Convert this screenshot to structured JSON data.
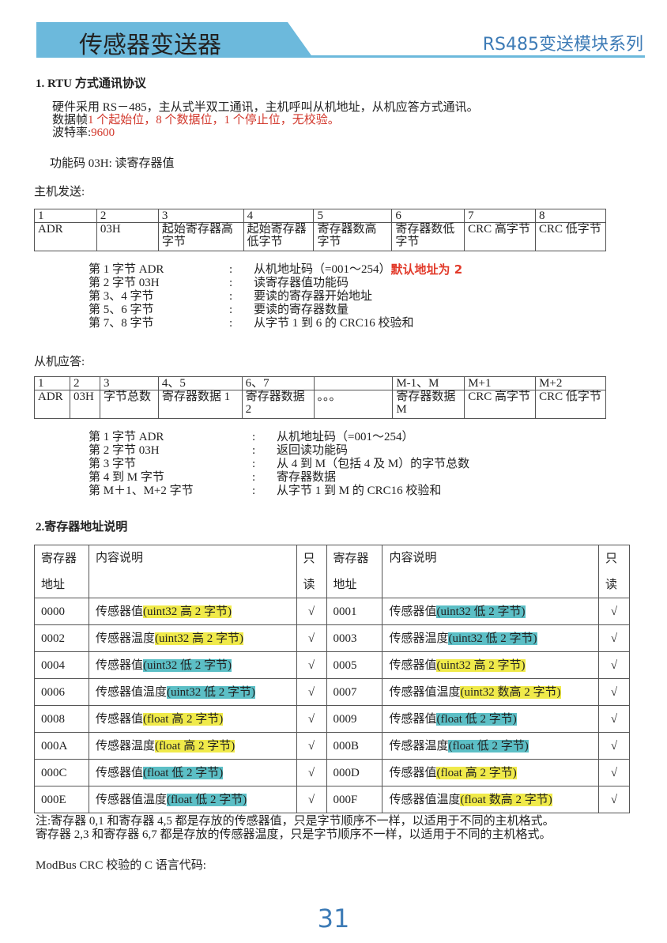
{
  "header": {
    "title": "传感器变送器",
    "series": "RS485变送模块系列",
    "accent": "#6cb9dc",
    "series_color": "#3d7bb6"
  },
  "section1": {
    "heading": "1. RTU 方式通讯协议",
    "line1": "硬件采用 RS－485，主从式半双工通讯，主机呼叫从机地址，从机应答方式通讯。",
    "line2_label": "数据帧",
    "line2_value": "1 个起始位，8 个数据位，1 个停止位，无校验。",
    "line3_label": "波特率:",
    "line3_value": "9600",
    "function_code": "功能码 03H:   读寄存器值",
    "master_label": "主机发送:",
    "master_table": {
      "numbers": [
        "1",
        "2",
        "3",
        "4",
        "5",
        "6",
        "7",
        "8"
      ],
      "cells": [
        "ADR",
        "03H",
        "起始寄存器高字节",
        "起始寄存器低字节",
        "寄存器数高字节",
        "寄存器数低字节",
        "CRC 高字节",
        "CRC 低字节"
      ]
    },
    "master_desc": [
      {
        "label": "第 1 字节   ADR",
        "colon": ":",
        "text": "从机地址码（=001～254）",
        "note": "默认地址为 2"
      },
      {
        "label": "第 2 字节 03H",
        "colon": ":",
        "text": "读寄存器值功能码"
      },
      {
        "label": "第 3、4 字节",
        "colon": ":",
        "text": "要读的寄存器开始地址"
      },
      {
        "label": "第 5、6 字节",
        "colon": ":",
        "text": "要读的寄存器数量"
      },
      {
        "label": "第 7、8 字节",
        "colon": ":",
        "text": "从字节 1 到 6 的 CRC16 校验和"
      }
    ],
    "slave_label": "从机应答:",
    "slave_table": {
      "numbers": [
        "1",
        "2",
        "3",
        "4、5",
        "6、7",
        "",
        "M-1、M",
        "M+1",
        "M+2"
      ],
      "cells": [
        "ADR",
        "03H",
        "字节总数",
        "寄存器数据 1",
        "寄存器数据 2",
        "。。。",
        "寄存器数据 M",
        "CRC 高字节",
        "CRC 低字节"
      ]
    },
    "slave_desc": [
      {
        "label": "第 1 字节   ADR",
        "colon": ":",
        "text": "从机地址码（=001～254）"
      },
      {
        "label": "第 2 字节   03H",
        "colon": ":",
        "text": "返回读功能码"
      },
      {
        "label": "第 3 字节",
        "colon": ":",
        "text": "从 4 到 M（包括 4 及 M）的字节总数"
      },
      {
        "label": "第 4 到 M 字节",
        "colon": ":",
        "text": "寄存器数据"
      },
      {
        "label": "第 M＋1、M+2 字节",
        "colon": ":",
        "text": "从字节 1 到 M 的 CRC16 校验和"
      }
    ]
  },
  "section2": {
    "heading": "2.寄存器地址说明",
    "headers": {
      "addr1": "寄存器",
      "addr2": "地址",
      "content": "内容说明",
      "ro1": "只",
      "ro2": "读"
    },
    "highlight_colors": {
      "yellow": "#f0ea4a",
      "teal": "#5cbfc6"
    },
    "rows": [
      {
        "l": {
          "addr": "0000",
          "name": "传感器值",
          "detail": "(uint32 高 2 字节)",
          "hl": "yellow",
          "ro": "√"
        },
        "r": {
          "addr": "0001",
          "name": "传感器值",
          "detail": "(uint32 低 2 字节)",
          "hl": "teal",
          "ro": "√"
        }
      },
      {
        "l": {
          "addr": "0002",
          "name": "传感器温度",
          "detail": "(uint32 高 2 字节)",
          "hl": "yellow",
          "ro": "√"
        },
        "r": {
          "addr": "0003",
          "name": "传感器温度",
          "detail": "(uint32 低 2 字节)",
          "hl": "teal",
          "ro": "√"
        }
      },
      {
        "l": {
          "addr": "0004",
          "name": "传感器值",
          "detail": "(uint32 低 2 字节)",
          "hl": "teal",
          "ro": "√"
        },
        "r": {
          "addr": "0005",
          "name": "传感器值",
          "detail": "(uint32 高 2 字节)",
          "hl": "yellow",
          "ro": "√"
        }
      },
      {
        "l": {
          "addr": "0006",
          "name": "传感器值温度",
          "detail": "(uint32 低 2 字节)",
          "hl": "teal",
          "ro": "√"
        },
        "r": {
          "addr": "0007",
          "name": "传感器值温度",
          "detail": "(uint32 数高 2 字节)",
          "hl": "yellow",
          "ro": "√"
        }
      },
      {
        "l": {
          "addr": "0008",
          "name": "传感器值",
          "detail": "(float 高 2 字节)",
          "hl": "yellow",
          "ro": "√"
        },
        "r": {
          "addr": "0009",
          "name": "传感器值",
          "detail": "(float 低 2 字节)",
          "hl": "teal",
          "ro": "√"
        }
      },
      {
        "l": {
          "addr": "000A",
          "name": "传感器温度",
          "detail": "(float 高 2 字节)",
          "hl": "yellow",
          "ro": "√"
        },
        "r": {
          "addr": "000B",
          "name": "传感器温度",
          "detail": "(float 低 2 字节)",
          "hl": "teal",
          "ro": "√"
        }
      },
      {
        "l": {
          "addr": "000C",
          "name": "传感器值",
          "detail": "(float 低 2 字节)",
          "hl": "teal",
          "ro": "√"
        },
        "r": {
          "addr": "000D",
          "name": "传感器值",
          "detail": "(float 高 2 字节)",
          "hl": "yellow",
          "ro": "√"
        }
      },
      {
        "l": {
          "addr": "000E",
          "name": "传感器值温度",
          "detail": "(float 低 2 字节)",
          "hl": "teal",
          "ro": "√"
        },
        "r": {
          "addr": "000F",
          "name": "传感器值温度",
          "detail": "(float 数高 2 字节)",
          "hl": "yellow",
          "ro": "√"
        }
      }
    ],
    "note1": "注:寄存器 0,1 和寄存器 4,5 都是存放的传感器值，只是字节顺序不一样，以适用于不同的主机格式。",
    "note2": "寄存器 2,3 和寄存器 6,7 都是存放的传感器温度，只是字节顺序不一样，以适用于不同的主机格式。",
    "crc_label": "ModBus CRC 校验的 C 语言代码:"
  },
  "page_number": "31"
}
